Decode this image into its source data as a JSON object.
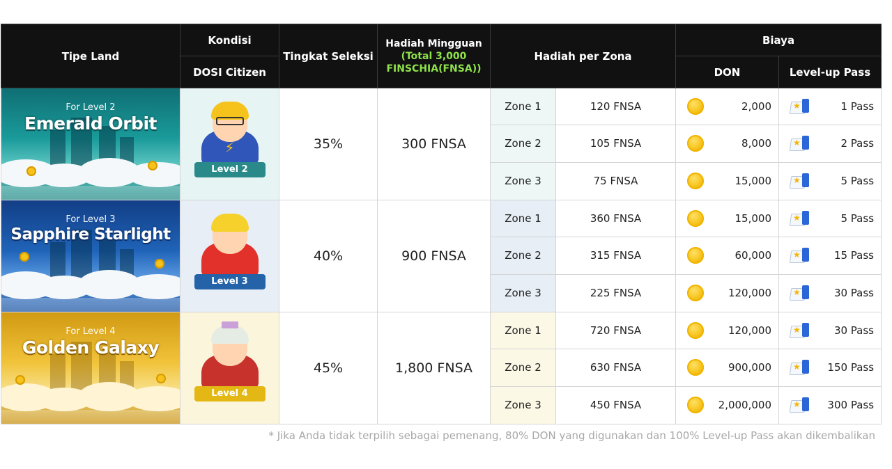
{
  "header": {
    "tipe_land": "Tipe Land",
    "kondisi": "Kondisi",
    "dosi_citizen": "DOSI Citizen",
    "tingkat_seleksi": "Tingkat Seleksi",
    "hadiah_mingguan": "Hadiah Mingguan",
    "hadiah_total_1": "(Total 3,000",
    "hadiah_total_2": "FINSCHIA(FNSA))",
    "hadiah_per_zona": "Hadiah per Zona",
    "biaya": "Biaya",
    "don": "DON",
    "level_up_pass": "Level-up Pass"
  },
  "colors": {
    "header_bg": "#111111",
    "highlight": "#8fe34a"
  },
  "lands": [
    {
      "for_level": "For Level 2",
      "name": "Emerald Orbit",
      "level_badge": "Level 2",
      "selection_rate": "35%",
      "weekly_reward": "300 FNSA",
      "zones": [
        {
          "zone": "Zone 1",
          "reward": "120 FNSA",
          "don": "2,000",
          "pass": "1 Pass"
        },
        {
          "zone": "Zone 2",
          "reward": "105 FNSA",
          "don": "8,000",
          "pass": "2 Pass"
        },
        {
          "zone": "Zone 3",
          "reward": "75 FNSA",
          "don": "15,000",
          "pass": "5 Pass"
        }
      ]
    },
    {
      "for_level": "For Level 3",
      "name": "Sapphire Starlight",
      "level_badge": "Level 3",
      "selection_rate": "40%",
      "weekly_reward": "900 FNSA",
      "zones": [
        {
          "zone": "Zone 1",
          "reward": "360 FNSA",
          "don": "15,000",
          "pass": "5 Pass"
        },
        {
          "zone": "Zone 2",
          "reward": "315 FNSA",
          "don": "60,000",
          "pass": "15 Pass"
        },
        {
          "zone": "Zone 3",
          "reward": "225 FNSA",
          "don": "120,000",
          "pass": "30 Pass"
        }
      ]
    },
    {
      "for_level": "For Level 4",
      "name": "Golden Galaxy",
      "level_badge": "Level 4",
      "selection_rate": "45%",
      "weekly_reward": "1,800 FNSA",
      "zones": [
        {
          "zone": "Zone 1",
          "reward": "720 FNSA",
          "don": "120,000",
          "pass": "30 Pass"
        },
        {
          "zone": "Zone 2",
          "reward": "630 FNSA",
          "don": "900,000",
          "pass": "150 Pass"
        },
        {
          "zone": "Zone 3",
          "reward": "450 FNSA",
          "don": "2,000,000",
          "pass": "300 Pass"
        }
      ]
    }
  ],
  "icons": {
    "don": "gold-coin-icon",
    "pass": "level-up-pass-icon"
  },
  "footnote": "* Jika Anda tidak terpilih sebagai pemenang, 80% DON yang digunakan dan 100% Level-up Pass akan dikembalikan"
}
